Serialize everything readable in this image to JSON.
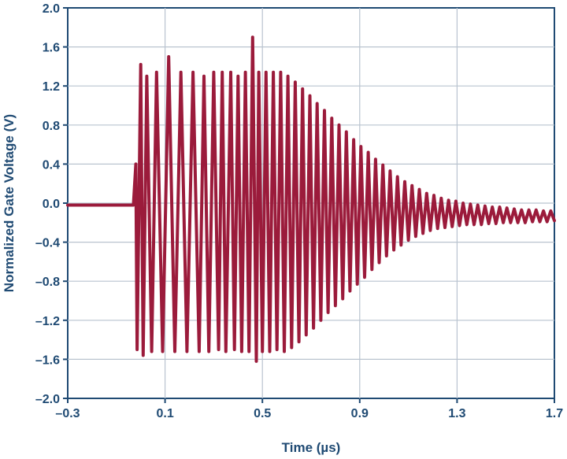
{
  "chart_data": {
    "type": "line",
    "xlabel": "Time (µs)",
    "ylabel": "Normalized Gate Voltage (V)",
    "xlim": [
      -0.3,
      1.7
    ],
    "ylim": [
      -2.0,
      2.0
    ],
    "x_ticks": [
      -0.3,
      0.1,
      0.5,
      0.9,
      1.3,
      1.7
    ],
    "x_tick_labels": [
      "–0.3",
      "0.1",
      "0.5",
      "0.9",
      "1.3",
      "1.7"
    ],
    "y_ticks": [
      2.0,
      1.6,
      1.2,
      0.8,
      0.4,
      0.0,
      -0.4,
      -0.8,
      -1.2,
      -1.6,
      -2.0
    ],
    "y_tick_labels": [
      "2.0",
      "1.6",
      "1.2",
      "0.8",
      "0.4",
      "0.0",
      "–0.4",
      "–0.8",
      "–1.2",
      "–1.6",
      "–2.0"
    ],
    "grid": true,
    "line_color": "#9b1b3b",
    "axis_color": "#1f4a73",
    "grid_color": "#b9c3cf",
    "series": [
      {
        "points": [
          [
            -0.3,
            -0.02
          ],
          [
            -0.27,
            -0.02
          ],
          [
            -0.24,
            -0.02
          ],
          [
            -0.21,
            -0.02
          ],
          [
            -0.18,
            -0.02
          ],
          [
            -0.15,
            -0.02
          ],
          [
            -0.12,
            -0.02
          ],
          [
            -0.09,
            -0.02
          ],
          [
            -0.03,
            -0.02
          ],
          [
            -0.02,
            0.4
          ],
          [
            -0.015,
            -1.5
          ],
          [
            0.0,
            1.42
          ],
          [
            0.01,
            -1.56
          ],
          [
            0.025,
            1.3
          ],
          [
            0.045,
            -1.52
          ],
          [
            0.065,
            1.34
          ],
          [
            0.09,
            -1.52
          ],
          [
            0.115,
            1.5
          ],
          [
            0.14,
            -1.52
          ],
          [
            0.165,
            1.34
          ],
          [
            0.19,
            -1.52
          ],
          [
            0.215,
            1.34
          ],
          [
            0.24,
            -1.52
          ],
          [
            0.26,
            1.3
          ],
          [
            0.28,
            -1.52
          ],
          [
            0.3,
            1.34
          ],
          [
            0.32,
            -1.5
          ],
          [
            0.335,
            1.34
          ],
          [
            0.35,
            -1.52
          ],
          [
            0.37,
            1.34
          ],
          [
            0.385,
            -1.5
          ],
          [
            0.4,
            1.3
          ],
          [
            0.415,
            -1.52
          ],
          [
            0.43,
            1.34
          ],
          [
            0.445,
            -1.52
          ],
          [
            0.46,
            1.7
          ],
          [
            0.475,
            -1.62
          ],
          [
            0.485,
            1.34
          ],
          [
            0.5,
            -1.52
          ],
          [
            0.515,
            1.34
          ],
          [
            0.53,
            -1.52
          ],
          [
            0.545,
            1.34
          ],
          [
            0.56,
            -1.5
          ],
          [
            0.575,
            1.34
          ],
          [
            0.59,
            -1.52
          ],
          [
            0.605,
            1.3
          ],
          [
            0.62,
            -1.48
          ],
          [
            0.635,
            1.24
          ],
          [
            0.65,
            -1.42
          ],
          [
            0.665,
            1.17
          ],
          [
            0.68,
            -1.35
          ],
          [
            0.695,
            1.1
          ],
          [
            0.71,
            -1.28
          ],
          [
            0.725,
            1.02
          ],
          [
            0.74,
            -1.2
          ],
          [
            0.755,
            0.95
          ],
          [
            0.77,
            -1.12
          ],
          [
            0.785,
            0.87
          ],
          [
            0.8,
            -1.05
          ],
          [
            0.815,
            0.8
          ],
          [
            0.83,
            -0.98
          ],
          [
            0.845,
            0.73
          ],
          [
            0.86,
            -0.9
          ],
          [
            0.875,
            0.65
          ],
          [
            0.89,
            -0.83
          ],
          [
            0.905,
            0.58
          ],
          [
            0.92,
            -0.76
          ],
          [
            0.935,
            0.52
          ],
          [
            0.95,
            -0.68
          ],
          [
            0.965,
            0.45
          ],
          [
            0.98,
            -0.61
          ],
          [
            0.995,
            0.39
          ],
          [
            1.01,
            -0.54
          ],
          [
            1.025,
            0.33
          ],
          [
            1.04,
            -0.48
          ],
          [
            1.055,
            0.27
          ],
          [
            1.07,
            -0.43
          ],
          [
            1.085,
            0.22
          ],
          [
            1.1,
            -0.38
          ],
          [
            1.115,
            0.18
          ],
          [
            1.13,
            -0.34
          ],
          [
            1.145,
            0.14
          ],
          [
            1.16,
            -0.31
          ],
          [
            1.175,
            0.1
          ],
          [
            1.19,
            -0.28
          ],
          [
            1.205,
            0.08
          ],
          [
            1.22,
            -0.26
          ],
          [
            1.235,
            0.05
          ],
          [
            1.25,
            -0.25
          ],
          [
            1.265,
            0.03
          ],
          [
            1.28,
            -0.24
          ],
          [
            1.295,
            0.02
          ],
          [
            1.31,
            -0.23
          ],
          [
            1.325,
            0.0
          ],
          [
            1.34,
            -0.22
          ],
          [
            1.355,
            -0.01
          ],
          [
            1.37,
            -0.22
          ],
          [
            1.385,
            -0.02
          ],
          [
            1.4,
            -0.22
          ],
          [
            1.415,
            -0.03
          ],
          [
            1.43,
            -0.21
          ],
          [
            1.445,
            -0.04
          ],
          [
            1.46,
            -0.21
          ],
          [
            1.475,
            -0.04
          ],
          [
            1.49,
            -0.2
          ],
          [
            1.505,
            -0.05
          ],
          [
            1.52,
            -0.2
          ],
          [
            1.535,
            -0.06
          ],
          [
            1.55,
            -0.2
          ],
          [
            1.565,
            -0.07
          ],
          [
            1.58,
            -0.2
          ],
          [
            1.595,
            -0.07
          ],
          [
            1.61,
            -0.19
          ],
          [
            1.625,
            -0.07
          ],
          [
            1.64,
            -0.19
          ],
          [
            1.655,
            -0.08
          ],
          [
            1.67,
            -0.19
          ],
          [
            1.685,
            -0.08
          ],
          [
            1.7,
            -0.18
          ]
        ]
      }
    ]
  }
}
